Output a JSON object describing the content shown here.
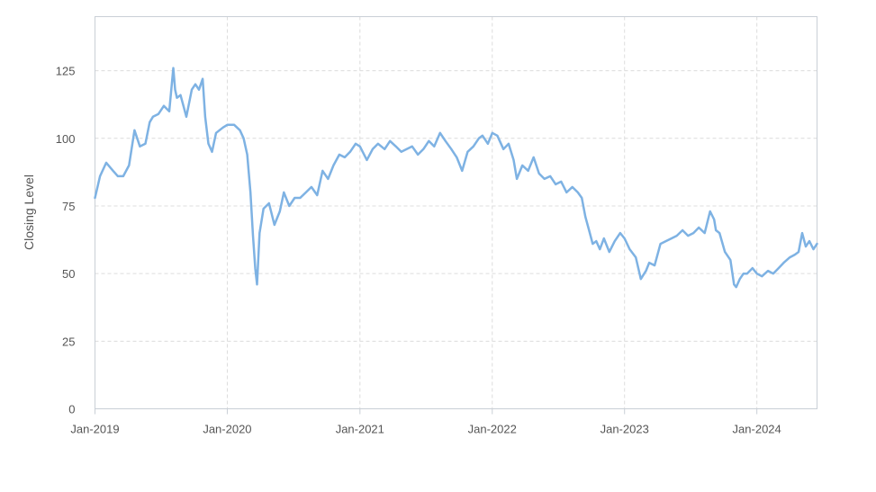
{
  "chart_data": {
    "type": "line",
    "title": "",
    "xlabel": "",
    "ylabel": "Closing Level",
    "ylim": [
      0,
      145
    ],
    "yticks": [
      0,
      25,
      50,
      75,
      100,
      125
    ],
    "xlim": [
      "2019-01-01",
      "2024-06-15"
    ],
    "xticks": [
      {
        "date": "2019-01-01",
        "label": "Jan-2019"
      },
      {
        "date": "2020-01-01",
        "label": "Jan-2020"
      },
      {
        "date": "2021-01-01",
        "label": "Jan-2021"
      },
      {
        "date": "2022-01-01",
        "label": "Jan-2022"
      },
      {
        "date": "2023-01-01",
        "label": "Jan-2023"
      },
      {
        "date": "2024-01-01",
        "label": "Jan-2024"
      }
    ],
    "grid": true,
    "legend": "none",
    "line_color": "#7eb2e3",
    "series": [
      {
        "x": [
          "2019-01-01",
          "2019-01-15",
          "2019-02-01",
          "2019-02-20",
          "2019-03-05",
          "2019-03-20",
          "2019-04-05",
          "2019-04-20",
          "2019-05-05",
          "2019-05-20",
          "2019-06-01",
          "2019-06-10",
          "2019-06-25",
          "2019-07-10",
          "2019-07-25",
          "2019-08-05",
          "2019-08-10",
          "2019-08-15",
          "2019-08-25",
          "2019-09-10",
          "2019-09-25",
          "2019-10-05",
          "2019-10-15",
          "2019-10-25",
          "2019-11-01",
          "2019-11-10",
          "2019-11-20",
          "2019-12-01",
          "2019-12-20",
          "2020-01-01",
          "2020-01-20",
          "2020-02-05",
          "2020-02-15",
          "2020-02-25",
          "2020-03-05",
          "2020-03-12",
          "2020-03-18",
          "2020-03-23",
          "2020-03-30",
          "2020-04-10",
          "2020-04-25",
          "2020-05-10",
          "2020-05-25",
          "2020-06-05",
          "2020-06-20",
          "2020-07-05",
          "2020-07-20",
          "2020-08-05",
          "2020-08-20",
          "2020-09-05",
          "2020-09-20",
          "2020-10-05",
          "2020-10-20",
          "2020-11-05",
          "2020-11-20",
          "2020-12-05",
          "2020-12-20",
          "2021-01-01",
          "2021-01-20",
          "2021-02-05",
          "2021-02-20",
          "2021-03-10",
          "2021-03-25",
          "2021-04-10",
          "2021-04-25",
          "2021-05-10",
          "2021-05-25",
          "2021-06-10",
          "2021-06-25",
          "2021-07-10",
          "2021-07-25",
          "2021-08-10",
          "2021-08-25",
          "2021-09-10",
          "2021-09-25",
          "2021-10-10",
          "2021-10-25",
          "2021-11-10",
          "2021-11-25",
          "2021-12-05",
          "2021-12-20",
          "2022-01-01",
          "2022-01-15",
          "2022-02-01",
          "2022-02-15",
          "2022-03-01",
          "2022-03-10",
          "2022-03-25",
          "2022-04-10",
          "2022-04-25",
          "2022-05-10",
          "2022-05-25",
          "2022-06-10",
          "2022-06-25",
          "2022-07-10",
          "2022-07-25",
          "2022-08-10",
          "2022-08-25",
          "2022-09-05",
          "2022-09-15",
          "2022-09-25",
          "2022-10-05",
          "2022-10-15",
          "2022-10-25",
          "2022-11-05",
          "2022-11-20",
          "2022-12-05",
          "2022-12-20",
          "2023-01-01",
          "2023-01-15",
          "2023-02-01",
          "2023-02-15",
          "2023-03-01",
          "2023-03-10",
          "2023-03-25",
          "2023-04-10",
          "2023-04-25",
          "2023-05-10",
          "2023-05-25",
          "2023-06-10",
          "2023-06-25",
          "2023-07-10",
          "2023-07-25",
          "2023-08-10",
          "2023-08-25",
          "2023-09-05",
          "2023-09-10",
          "2023-09-20",
          "2023-10-05",
          "2023-10-20",
          "2023-10-30",
          "2023-11-05",
          "2023-11-15",
          "2023-11-25",
          "2023-12-05",
          "2023-12-20",
          "2024-01-01",
          "2024-01-15",
          "2024-02-01",
          "2024-02-15",
          "2024-03-01",
          "2024-03-15",
          "2024-04-01",
          "2024-04-15",
          "2024-04-25",
          "2024-05-05",
          "2024-05-15",
          "2024-05-25",
          "2024-06-05",
          "2024-06-15"
        ],
        "values": [
          78,
          86,
          91,
          88,
          86,
          86,
          90,
          103,
          97,
          98,
          106,
          108,
          109,
          112,
          110,
          126,
          118,
          115,
          116,
          108,
          118,
          120,
          118,
          122,
          108,
          98,
          95,
          102,
          104,
          105,
          105,
          103,
          100,
          94,
          80,
          64,
          52,
          46,
          65,
          74,
          76,
          68,
          73,
          80,
          75,
          78,
          78,
          80,
          82,
          79,
          88,
          85,
          90,
          94,
          93,
          95,
          98,
          97,
          92,
          96,
          98,
          96,
          99,
          97,
          95,
          96,
          97,
          94,
          96,
          99,
          97,
          102,
          99,
          96,
          93,
          88,
          95,
          97,
          100,
          101,
          98,
          102,
          101,
          96,
          98,
          92,
          85,
          90,
          88,
          93,
          87,
          85,
          86,
          83,
          84,
          80,
          82,
          80,
          78,
          71,
          66,
          61,
          62,
          59,
          63,
          58,
          62,
          65,
          63,
          59,
          56,
          48,
          51,
          54,
          53,
          61,
          62,
          63,
          64,
          66,
          64,
          65,
          67,
          65,
          73,
          70,
          66,
          65,
          58,
          55,
          46,
          45,
          48,
          50,
          50,
          52,
          50,
          49,
          51,
          50,
          52,
          54,
          56,
          57,
          58,
          65,
          60,
          62,
          59,
          61
        ]
      }
    ]
  }
}
